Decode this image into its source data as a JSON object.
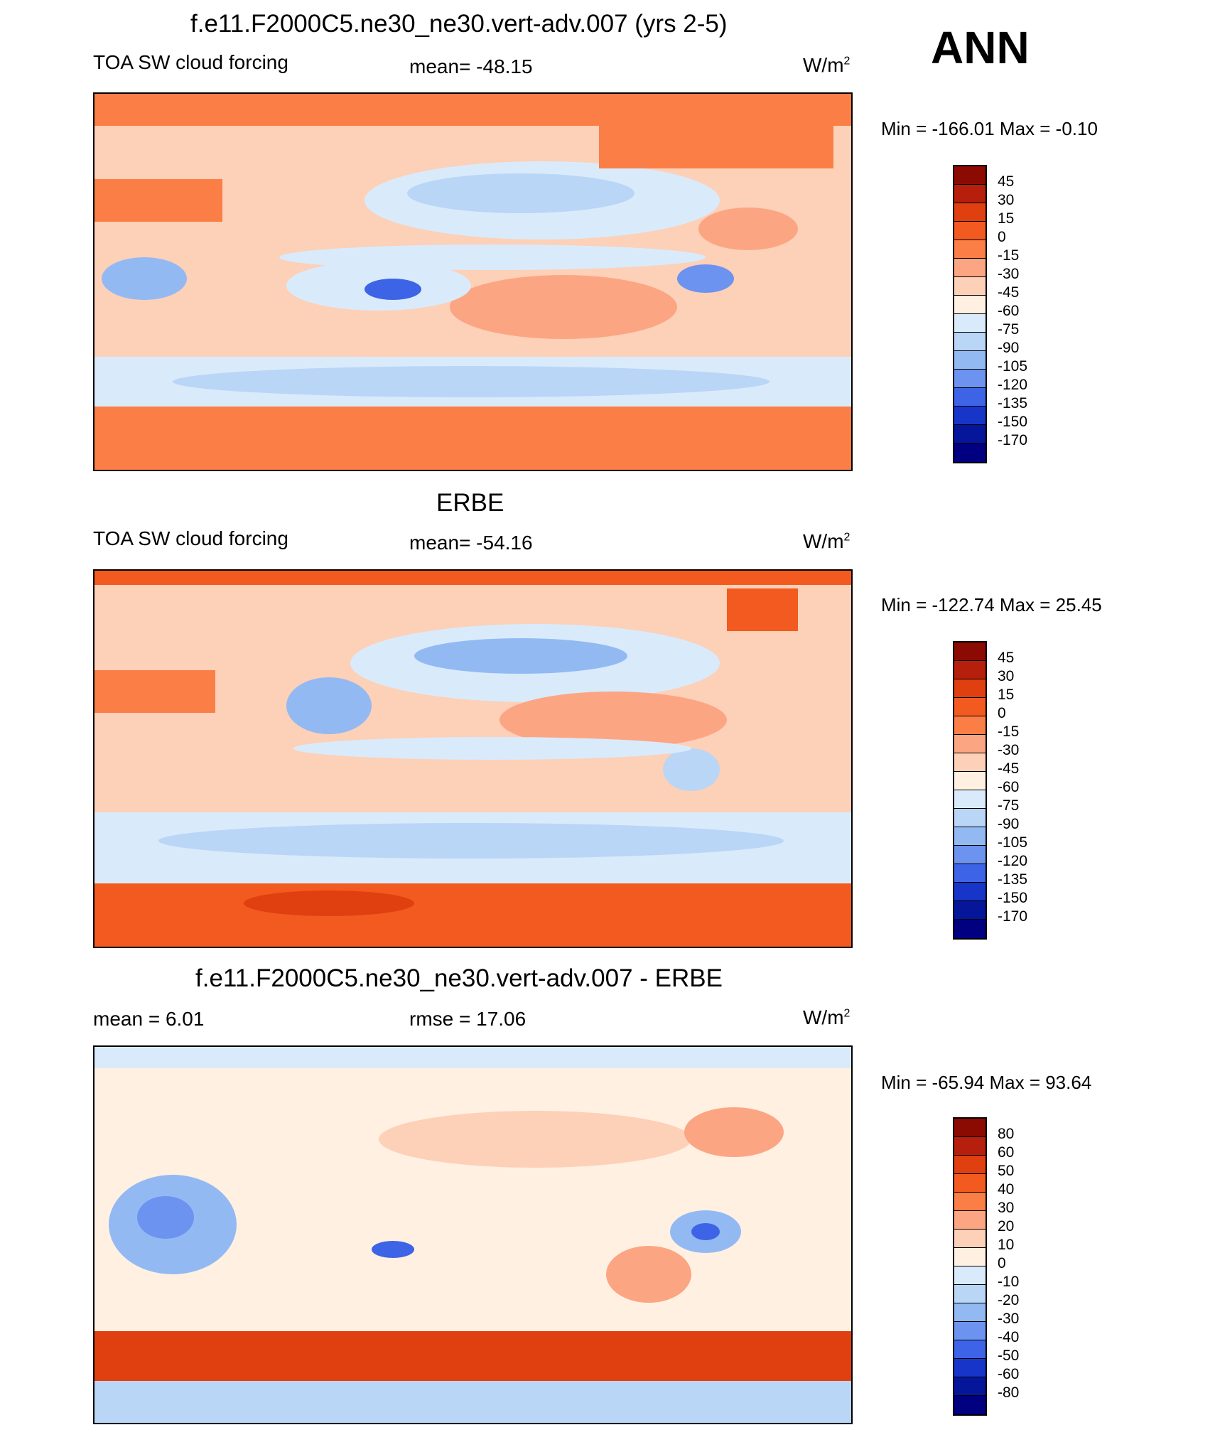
{
  "season": "ANN",
  "units_base": "W/m",
  "units_sup": "2",
  "panels": [
    {
      "title": "f.e11.F2000C5.ne30_ne30.vert-adv.007 (yrs 2-5)",
      "left_label": "TOA SW cloud forcing",
      "center_label": "mean= -48.15",
      "minmax": "Min = -166.01 Max =  -0.10",
      "ticks": [
        "45",
        "30",
        "15",
        "0",
        "-15",
        "-30",
        "-45",
        "-60",
        "-75",
        "-90",
        "-105",
        "-120",
        "-135",
        "-150",
        "-170"
      ],
      "colors": [
        "#8b0a02",
        "#b51f0c",
        "#e0400f",
        "#f25a20",
        "#fa7e45",
        "#fca583",
        "#fdd0b8",
        "#fff0e2",
        "#d9ebfb",
        "#b9d6f7",
        "#93b9f3",
        "#6c93ef",
        "#3d64e6",
        "#1736c9",
        "#06169b",
        "#000080"
      ],
      "mean_fill": "#fdd0b8"
    },
    {
      "title": "ERBE",
      "left_label": "TOA SW cloud forcing",
      "center_label": "mean= -54.16",
      "minmax": "Min = -122.74 Max =  25.45",
      "ticks": [
        "45",
        "30",
        "15",
        "0",
        "-15",
        "-30",
        "-45",
        "-60",
        "-75",
        "-90",
        "-105",
        "-120",
        "-135",
        "-150",
        "-170"
      ],
      "colors": [
        "#8b0a02",
        "#b51f0c",
        "#e0400f",
        "#f25a20",
        "#fa7e45",
        "#fca583",
        "#fdd0b8",
        "#fff0e2",
        "#d9ebfb",
        "#b9d6f7",
        "#93b9f3",
        "#6c93ef",
        "#3d64e6",
        "#1736c9",
        "#06169b",
        "#000080"
      ],
      "mean_fill": "#fdd0b8"
    },
    {
      "title": "f.e11.F2000C5.ne30_ne30.vert-adv.007 - ERBE",
      "left_label": "mean =   6.01",
      "center_label": "rmse =  17.06",
      "minmax": "Min = -65.94 Max =  93.64",
      "ticks": [
        "80",
        "60",
        "50",
        "40",
        "30",
        "20",
        "10",
        "0",
        "-10",
        "-20",
        "-30",
        "-40",
        "-50",
        "-60",
        "-80"
      ],
      "colors": [
        "#8b0a02",
        "#b51f0c",
        "#e0400f",
        "#f25a20",
        "#fa7e45",
        "#fca583",
        "#fdd0b8",
        "#fff0e2",
        "#d9ebfb",
        "#b9d6f7",
        "#93b9f3",
        "#6c93ef",
        "#3d64e6",
        "#1736c9",
        "#06169b",
        "#000080"
      ],
      "mean_fill": "#fff0e2"
    }
  ]
}
